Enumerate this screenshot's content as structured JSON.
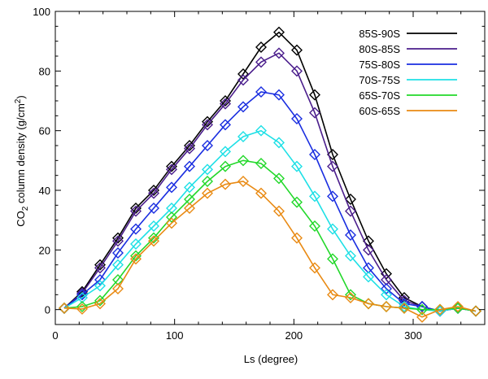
{
  "chart_data": {
    "type": "line",
    "xlabel": "Ls (degree)",
    "ylabel": {
      "main": "CO",
      "sub": "2",
      "mid": " column density (g/cm",
      "sup": "2",
      "end": ")"
    },
    "xlim": [
      0,
      360
    ],
    "ylim": [
      -5,
      100
    ],
    "xticks": [
      0,
      100,
      200,
      300
    ],
    "yticks": [
      0,
      20,
      40,
      60,
      80,
      100
    ],
    "grid": false,
    "legend_position": "top-right",
    "marker": "diamond",
    "x": [
      7.5,
      22.5,
      37.5,
      52.5,
      67.5,
      82.5,
      97.5,
      112.5,
      127.5,
      142.5,
      157.5,
      172.5,
      187.5,
      202.5,
      217.5,
      232.5,
      247.5,
      262.5,
      277.5,
      292.5,
      307.5,
      322.5,
      337.5,
      352.5
    ],
    "series": [
      {
        "name": "85S-90S",
        "color": "#000000",
        "values": [
          0.5,
          6,
          15,
          24,
          34,
          40,
          48,
          55,
          63,
          70,
          79,
          88,
          93,
          87,
          72,
          52,
          37,
          23,
          12,
          4,
          1,
          -0.5,
          0.5,
          -0.5
        ]
      },
      {
        "name": "80S-85S",
        "color": "#4b1e8c",
        "values": [
          0.5,
          5.5,
          14,
          23,
          33,
          39,
          47,
          54,
          62,
          69,
          77,
          83,
          86,
          80,
          66,
          48,
          33,
          20,
          10,
          3,
          1,
          -0.5,
          0.5,
          -0.5
        ]
      },
      {
        "name": "75S-80S",
        "color": "#1a2ee0",
        "values": [
          0.5,
          5,
          10,
          19,
          27,
          34,
          41,
          48,
          55,
          62,
          68,
          73,
          72,
          64,
          52,
          38,
          25,
          14,
          7,
          2,
          1,
          -0.5,
          0.5,
          -0.5
        ]
      },
      {
        "name": "70S-75S",
        "color": "#1ee0e6",
        "values": [
          0.5,
          4,
          8,
          15,
          22,
          28,
          34,
          41,
          47,
          53,
          58,
          60,
          56,
          48,
          38,
          27,
          18,
          11,
          5,
          1,
          0,
          -0.5,
          0.5,
          -0.5
        ]
      },
      {
        "name": "65S-70S",
        "color": "#22d82a",
        "values": [
          0.5,
          1,
          3,
          10,
          18,
          24,
          31,
          37,
          43,
          48,
          50,
          49,
          44,
          36,
          28,
          17,
          5,
          2,
          1,
          0.5,
          0,
          0,
          0.5,
          -0.5
        ]
      },
      {
        "name": "60S-65S",
        "color": "#e98a13",
        "values": [
          0.5,
          0.2,
          2,
          7,
          17,
          23,
          29,
          34,
          39,
          42,
          43,
          39,
          33,
          24,
          14,
          5,
          4,
          2,
          1,
          0.5,
          -2.5,
          0,
          1,
          -0.5
        ]
      }
    ]
  }
}
